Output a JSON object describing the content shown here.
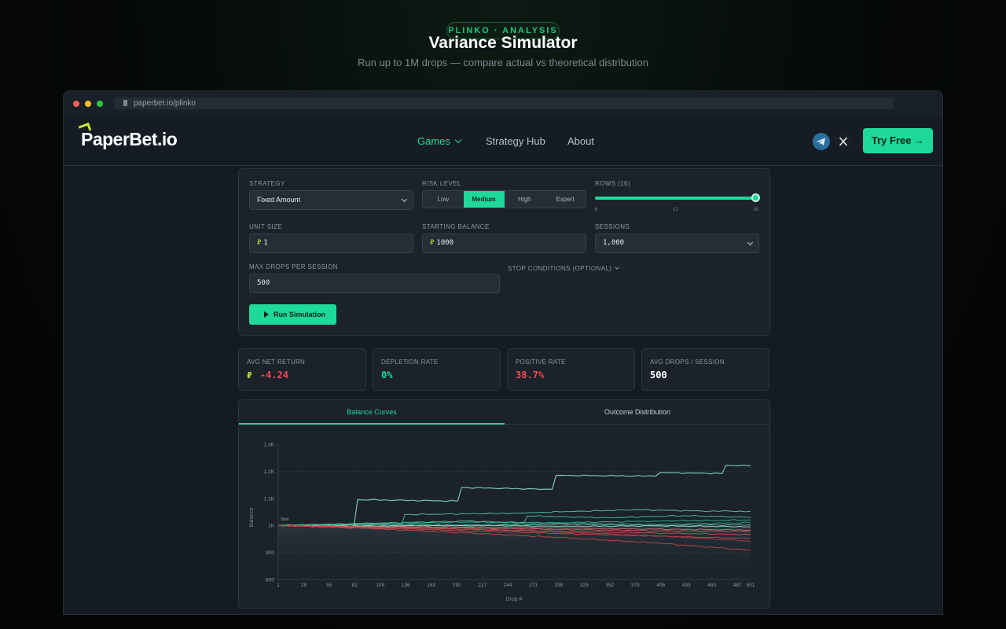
{
  "hero": {
    "badge": "PLINKO · ANALYSIS",
    "title": "Variance Simulator",
    "subtitle": "Run up to 1M drops — compare actual vs theoretical distribution"
  },
  "browser": {
    "url": "paperbet.io/plinko"
  },
  "nav": {
    "logo": "PaperBet.io",
    "items": [
      {
        "label": "Games",
        "active": true
      },
      {
        "label": "Strategy Hub",
        "active": false
      },
      {
        "label": "About",
        "active": false
      }
    ],
    "social": [
      "telegram-icon",
      "x-icon"
    ],
    "cta": "Try Free →"
  },
  "config": {
    "strategy_label": "STRATEGY",
    "strategy_value": "Fixed Amount",
    "risk_label": "RISK LEVEL",
    "risk_options": [
      "Low",
      "Medium",
      "High",
      "Expert"
    ],
    "risk_selected": "Medium",
    "rows_label": "ROWS (16)",
    "rows_ticks": [
      "8",
      "12",
      "16"
    ],
    "rows_value": 16,
    "unit_label": "UNIT SIZE",
    "unit_value": "1",
    "balance_label": "STARTING BALANCE",
    "balance_value": "1000",
    "sessions_label": "SESSIONS",
    "sessions_value": "1,000",
    "maxdrops_label": "MAX DROPS PER SESSION",
    "maxdrops_value": "500",
    "stop_label": "STOP CONDITIONS (OPTIONAL)",
    "run_label": "Run Simulation"
  },
  "stats": [
    {
      "label": "AVG NET RETURN",
      "value": "-4.24",
      "color": "#ef4a54",
      "coin": true
    },
    {
      "label": "DEPLETION RATE",
      "value": "0%",
      "color": "#1ed99a",
      "coin": false
    },
    {
      "label": "POSITIVE RATE",
      "value": "38.7%",
      "color": "#ef4a54",
      "coin": false
    },
    {
      "label": "AVG DROPS / SESSION",
      "value": "500",
      "color": "#ffffff",
      "coin": false
    }
  ],
  "tabs": [
    {
      "label": "Balance Curves",
      "active": true
    },
    {
      "label": "Outcome Distribution",
      "active": false
    }
  ],
  "chart_data": {
    "type": "line",
    "ylabel": "Balance",
    "xlabel": "Drop #",
    "ylim": [
      800,
      1300
    ],
    "xlim": [
      1,
      501
    ],
    "y_ticks": [
      "800",
      "900",
      "1K",
      "1.1K",
      "1.2K",
      "1.3K"
    ],
    "x_ticks": [
      "1",
      "28",
      "55",
      "82",
      "109",
      "136",
      "163",
      "190",
      "217",
      "244",
      "271",
      "298",
      "325",
      "352",
      "379",
      "406",
      "433",
      "460",
      "487",
      "501"
    ],
    "start_label": "Start",
    "grid": true,
    "series": [
      {
        "color": "#7fd4c4",
        "x": [
          1,
          80,
          85,
          190,
          195,
          290,
          295,
          400,
          405,
          470,
          475,
          501
        ],
        "values": [
          1000,
          994,
          1095,
          1090,
          1140,
          1133,
          1185,
          1182,
          1195,
          1192,
          1222,
          1220
        ]
      },
      {
        "color": "#5fd3b0",
        "x": [
          1,
          130,
          135,
          250,
          300,
          380,
          450,
          501
        ],
        "values": [
          1000,
          995,
          1040,
          1045,
          1050,
          1058,
          1053,
          1052
        ]
      },
      {
        "color": "#4fd6a0",
        "x": [
          1,
          100,
          200,
          260,
          265,
          350,
          430,
          501
        ],
        "values": [
          1000,
          1008,
          1016,
          1010,
          1035,
          1028,
          1036,
          1030
        ]
      },
      {
        "color": "#35c6a6",
        "x": [
          1,
          100,
          200,
          300,
          400,
          501
        ],
        "values": [
          1000,
          1006,
          1012,
          1010,
          1016,
          1020
        ]
      },
      {
        "color": "#2bb894",
        "x": [
          1,
          100,
          200,
          300,
          400,
          501
        ],
        "values": [
          1000,
          1004,
          1002,
          1008,
          1004,
          1010
        ]
      },
      {
        "color": "#6fb8a8",
        "x": [
          1,
          100,
          200,
          300,
          400,
          501
        ],
        "values": [
          1000,
          1002,
          998,
          1004,
          1000,
          1002
        ]
      },
      {
        "color": "#a8d8c8",
        "x": [
          1,
          100,
          200,
          300,
          400,
          501
        ],
        "values": [
          1000,
          998,
          1000,
          996,
          998,
          995
        ]
      },
      {
        "color": "#e05a5a",
        "x": [
          1,
          100,
          200,
          300,
          400,
          501
        ],
        "values": [
          1000,
          994,
          990,
          985,
          980,
          978
        ]
      },
      {
        "color": "#d9534f",
        "x": [
          1,
          100,
          200,
          300,
          400,
          501
        ],
        "values": [
          1000,
          992,
          986,
          978,
          972,
          966
        ]
      },
      {
        "color": "#c94a4a",
        "x": [
          1,
          100,
          200,
          300,
          400,
          501
        ],
        "values": [
          1000,
          990,
          980,
          970,
          960,
          952
        ]
      },
      {
        "color": "#e87070",
        "x": [
          1,
          100,
          200,
          300,
          400,
          501
        ],
        "values": [
          1000,
          996,
          993,
          990,
          986,
          983
        ]
      },
      {
        "color": "#d04848",
        "x": [
          1,
          100,
          200,
          300,
          400,
          501
        ],
        "values": [
          1000,
          988,
          972,
          955,
          935,
          908
        ]
      },
      {
        "color": "#b94040",
        "x": [
          1,
          100,
          200,
          300,
          400,
          501
        ],
        "values": [
          1000,
          993,
          985,
          975,
          962,
          942
        ]
      }
    ]
  }
}
